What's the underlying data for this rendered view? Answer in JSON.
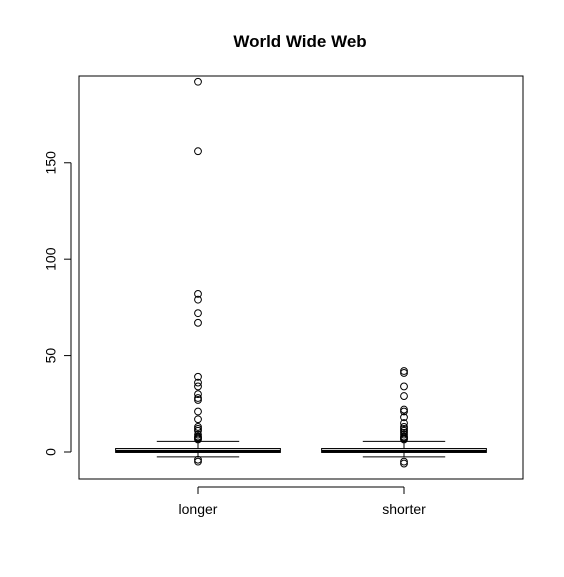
{
  "chart_data": {
    "type": "boxplot",
    "title": "World Wide Web",
    "xlabel": "",
    "ylabel": "",
    "ylim": [
      -14,
      195
    ],
    "y_ticks": [
      0,
      50,
      100,
      150
    ],
    "grid": false,
    "legend": "none",
    "categories": [
      "longer",
      "shorter"
    ],
    "boxes": [
      {
        "category": "longer",
        "whisker_low": -2.5,
        "q1": -0.2,
        "median": 0.3,
        "q3": 1.8,
        "whisker_high": 5.5,
        "outliers": [
          192,
          156,
          82,
          79,
          72,
          67,
          39,
          36,
          34,
          30,
          28,
          27,
          21,
          17,
          13,
          12,
          11,
          9,
          8,
          7.5,
          7,
          6.5,
          -4,
          -5
        ]
      },
      {
        "category": "shorter",
        "whisker_low": -2.5,
        "q1": -0.2,
        "median": 0.3,
        "q3": 1.8,
        "whisker_high": 5.5,
        "outliers": [
          42,
          41,
          34,
          29,
          22,
          21,
          18,
          15,
          13,
          12,
          11,
          10,
          9,
          8,
          7.5,
          7,
          6.5,
          -5,
          -6
        ]
      }
    ]
  }
}
